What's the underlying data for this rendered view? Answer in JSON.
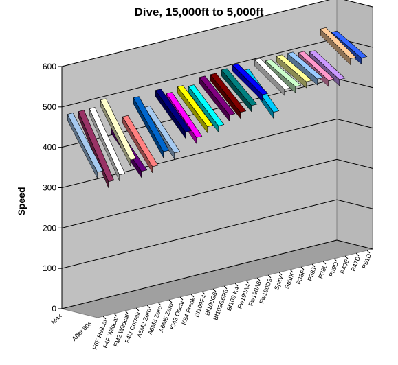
{
  "chart_data": {
    "type": "line",
    "title": "Dive, 15,000ft to 5,000ft",
    "xlabel": "",
    "ylabel": "Speed",
    "ylim": [
      0,
      600
    ],
    "yticks": [
      "0",
      "100",
      "200",
      "300",
      "400",
      "500",
      "600"
    ],
    "x": [
      "Max",
      "After 60s"
    ],
    "grid": true,
    "legend": "none",
    "view": "3d",
    "wall_color": "#c0c0c0",
    "floor_color": "#a0a0a0",
    "series": [
      {
        "name": "F6F Hellcat",
        "values": [
          480,
          355
        ],
        "color": "#a6caf0"
      },
      {
        "name": "F4F Wildcat",
        "values": [
          480,
          325
        ],
        "color": "#993366"
      },
      {
        "name": "FM2 Wildcat",
        "values": [
          480,
          335
        ],
        "color": "#ffffff"
      },
      {
        "name": "F4U Corsair",
        "values": [
          495,
          365
        ],
        "color": "#ffffcc"
      },
      {
        "name": "A6M2 Zero",
        "values": [
          420,
          330
        ],
        "color": "#660080"
      },
      {
        "name": "A6M3 Zero",
        "values": [
          440,
          335
        ],
        "color": "#ff8080"
      },
      {
        "name": "A6M5 Zero",
        "values": [
          480,
          365
        ],
        "color": "#0066cc"
      },
      {
        "name": "Ki43 Oscar",
        "values": [
          450,
          355
        ],
        "color": "#a6caf0"
      },
      {
        "name": "K84 Frank",
        "values": [
          485,
          400
        ],
        "color": "#000080"
      },
      {
        "name": "Bf109F4",
        "values": [
          470,
          380
        ],
        "color": "#ff00ff"
      },
      {
        "name": "Bf109G6",
        "values": [
          480,
          400
        ],
        "color": "#ffff00"
      },
      {
        "name": "Bf109G6R6",
        "values": [
          475,
          395
        ],
        "color": "#00ffff"
      },
      {
        "name": "Bf109 K4",
        "values": [
          490,
          415
        ],
        "color": "#800080"
      },
      {
        "name": "Fw190A4",
        "values": [
          490,
          415
        ],
        "color": "#800000"
      },
      {
        "name": "Fw190A8",
        "values": [
          495,
          425
        ],
        "color": "#008080"
      },
      {
        "name": "Fw190D9",
        "values": [
          500,
          445
        ],
        "color": "#0000ff"
      },
      {
        "name": "SpitV",
        "values": [
          480,
          395
        ],
        "color": "#00ccff"
      },
      {
        "name": "SpitIX",
        "values": [
          500,
          445
        ],
        "color": "#ffffff"
      },
      {
        "name": "P38F",
        "values": [
          490,
          445
        ],
        "color": "#ccffcc"
      },
      {
        "name": "P38J",
        "values": [
          495,
          450
        ],
        "color": "#ffff99"
      },
      {
        "name": "P38L",
        "values": [
          495,
          450
        ],
        "color": "#99ccff"
      },
      {
        "name": "P39D",
        "values": [
          490,
          440
        ],
        "color": "#ff99cc"
      },
      {
        "name": "P40E",
        "values": [
          485,
          435
        ],
        "color": "#cc99ff"
      },
      {
        "name": "P47D",
        "values": [
          535,
          480
        ],
        "color": "#ffcc99"
      },
      {
        "name": "P51D",
        "values": [
          520,
          475
        ],
        "color": "#3366ff"
      }
    ]
  }
}
